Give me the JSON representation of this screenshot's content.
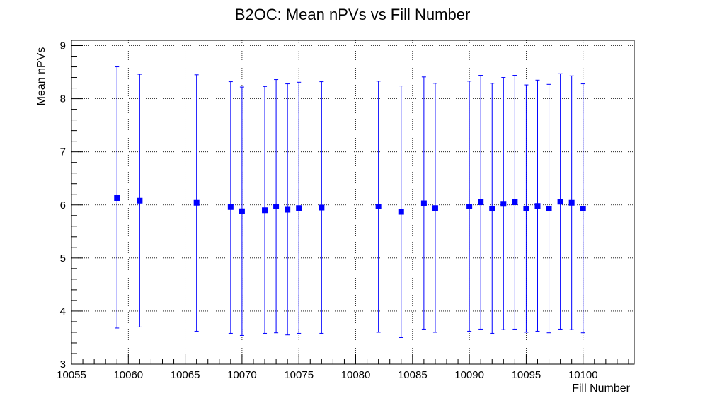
{
  "chart_data": {
    "type": "scatter",
    "title": "B2OC: Mean nPVs vs Fill Number",
    "xlabel": "Fill Number",
    "ylabel": "Mean nPVs",
    "xlim": [
      10055,
      10104.5
    ],
    "ylim": [
      3,
      9.1
    ],
    "x_ticks": [
      10055,
      10060,
      10065,
      10070,
      10075,
      10080,
      10085,
      10090,
      10095,
      10100
    ],
    "y_ticks": [
      3,
      4,
      5,
      6,
      7,
      8,
      9
    ],
    "grid": true,
    "marker_color": "#0000ff",
    "marker": "square",
    "points": [
      {
        "x": 10059,
        "y": 6.13,
        "err_low": 3.68,
        "err_high": 8.6
      },
      {
        "x": 10061,
        "y": 6.08,
        "err_low": 3.7,
        "err_high": 8.46
      },
      {
        "x": 10066,
        "y": 6.04,
        "err_low": 3.62,
        "err_high": 8.45
      },
      {
        "x": 10069,
        "y": 5.96,
        "err_low": 3.58,
        "err_high": 8.32
      },
      {
        "x": 10070,
        "y": 5.88,
        "err_low": 3.54,
        "err_high": 8.22
      },
      {
        "x": 10072,
        "y": 5.9,
        "err_low": 3.58,
        "err_high": 8.23
      },
      {
        "x": 10073,
        "y": 5.97,
        "err_low": 3.59,
        "err_high": 8.36
      },
      {
        "x": 10074,
        "y": 5.91,
        "err_low": 3.55,
        "err_high": 8.28
      },
      {
        "x": 10075,
        "y": 5.94,
        "err_low": 3.58,
        "err_high": 8.31
      },
      {
        "x": 10077,
        "y": 5.95,
        "err_low": 3.58,
        "err_high": 8.32
      },
      {
        "x": 10082,
        "y": 5.97,
        "err_low": 3.6,
        "err_high": 8.33
      },
      {
        "x": 10084,
        "y": 5.87,
        "err_low": 3.5,
        "err_high": 8.24
      },
      {
        "x": 10086,
        "y": 6.03,
        "err_low": 3.66,
        "err_high": 8.41
      },
      {
        "x": 10087,
        "y": 5.94,
        "err_low": 3.6,
        "err_high": 8.29
      },
      {
        "x": 10090,
        "y": 5.97,
        "err_low": 3.62,
        "err_high": 8.33
      },
      {
        "x": 10091,
        "y": 6.05,
        "err_low": 3.66,
        "err_high": 8.44
      },
      {
        "x": 10092,
        "y": 5.93,
        "err_low": 3.58,
        "err_high": 8.29
      },
      {
        "x": 10093,
        "y": 6.02,
        "err_low": 3.65,
        "err_high": 8.4
      },
      {
        "x": 10094,
        "y": 6.05,
        "err_low": 3.66,
        "err_high": 8.44
      },
      {
        "x": 10095,
        "y": 5.93,
        "err_low": 3.6,
        "err_high": 8.26
      },
      {
        "x": 10096,
        "y": 5.98,
        "err_low": 3.62,
        "err_high": 8.35
      },
      {
        "x": 10097,
        "y": 5.93,
        "err_low": 3.59,
        "err_high": 8.27
      },
      {
        "x": 10098,
        "y": 6.06,
        "err_low": 3.66,
        "err_high": 8.47
      },
      {
        "x": 10099,
        "y": 6.04,
        "err_low": 3.65,
        "err_high": 8.43
      },
      {
        "x": 10100,
        "y": 5.93,
        "err_low": 3.59,
        "err_high": 8.28
      }
    ]
  }
}
